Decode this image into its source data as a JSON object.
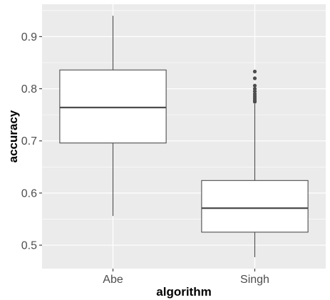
{
  "chart_data": {
    "type": "boxplot",
    "xlabel": "algorithm",
    "ylabel": "accuracy",
    "categories": [
      "Abe",
      "Singh"
    ],
    "boxes": [
      {
        "category": "Abe",
        "whisker_low": 0.556,
        "q1": 0.696,
        "median": 0.764,
        "q3": 0.836,
        "whisker_high": 0.94,
        "outliers": []
      },
      {
        "category": "Singh",
        "whisker_low": 0.477,
        "q1": 0.525,
        "median": 0.571,
        "q3": 0.624,
        "whisker_high": 0.771,
        "outliers": [
          0.775,
          0.778,
          0.782,
          0.786,
          0.79,
          0.795,
          0.8,
          0.806,
          0.82,
          0.833
        ]
      }
    ],
    "yticks": [
      0.5,
      0.6,
      0.7,
      0.8,
      0.9
    ],
    "ytick_labels": [
      "0.5",
      "0.6",
      "0.7",
      "0.8",
      "0.9"
    ],
    "ylim": [
      0.455,
      0.962
    ],
    "grid": true,
    "colors": {
      "panel_background": "#ebebeb",
      "grid_major": "#ffffff",
      "box_fill": "#ffffff",
      "box_line": "#4d4d4d",
      "outlier": "#4d4d4d"
    }
  }
}
